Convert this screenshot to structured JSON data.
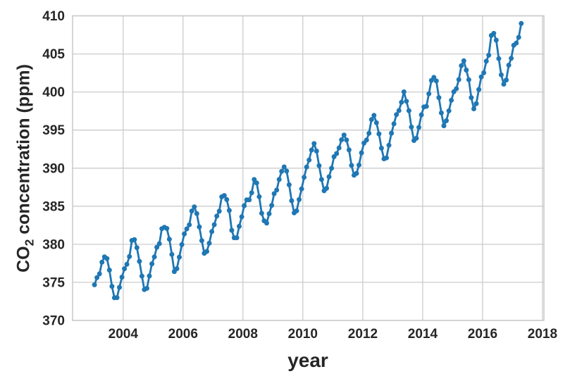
{
  "chart_data": {
    "type": "line",
    "title": "",
    "xlabel": "year",
    "ylabel": "CO2 concentration (ppm)",
    "ylabel_parts": {
      "base": "CO",
      "sub": "2",
      "rest": " concentration (ppm)"
    },
    "xlim": [
      2002.31,
      2018.05
    ],
    "ylim": [
      370,
      410
    ],
    "x_ticks": [
      2004,
      2006,
      2008,
      2010,
      2012,
      2014,
      2016,
      2018
    ],
    "y_ticks": [
      370,
      375,
      380,
      385,
      390,
      395,
      400,
      405,
      410
    ],
    "grid": true,
    "legend": "none",
    "series": [
      {
        "name": "CO2 concentration",
        "color": "#1f77b4",
        "marker": "circle",
        "cadence": "monthly",
        "monthly": [
          {
            "year": 2003,
            "values": [
              374.68,
              375.62,
              376.11,
              377.65,
              378.35,
              378.13,
              376.61,
              374.48,
              372.98,
              373.0,
              374.35,
              375.69
            ]
          },
          {
            "year": 2004,
            "values": [
              376.79,
              377.37,
              378.39,
              380.5,
              380.62,
              379.55,
              377.76,
              375.83,
              374.05,
              374.22,
              375.84,
              377.44
            ]
          },
          {
            "year": 2005,
            "values": [
              378.34,
              379.61,
              380.08,
              382.05,
              382.24,
              382.08,
              380.66,
              378.67,
              376.42,
              376.8,
              378.31,
              379.96
            ]
          },
          {
            "year": 2006,
            "values": [
              381.37,
              382.02,
              382.56,
              384.37,
              384.92,
              384.03,
              382.28,
              380.48,
              378.81,
              379.06,
              380.14,
              381.66
            ]
          },
          {
            "year": 2007,
            "values": [
              382.58,
              383.71,
              384.34,
              386.23,
              386.41,
              385.87,
              384.45,
              381.84,
              380.86,
              380.86,
              382.36,
              383.61
            ]
          },
          {
            "year": 2008,
            "values": [
              385.07,
              385.84,
              385.83,
              386.77,
              388.51,
              388.05,
              386.25,
              384.08,
              383.09,
              382.78,
              384.01,
              385.11
            ]
          },
          {
            "year": 2009,
            "values": [
              386.65,
              387.12,
              388.52,
              389.57,
              390.16,
              389.62,
              387.81,
              385.72,
              384.12,
              384.39,
              385.87,
              387.28
            ]
          },
          {
            "year": 2010,
            "values": [
              388.79,
              390.14,
              391.07,
              392.38,
              393.22,
              392.24,
              390.33,
              388.52,
              387.03,
              387.35,
              388.87,
              389.99
            ]
          },
          {
            "year": 2011,
            "values": [
              391.5,
              391.92,
              392.66,
              393.72,
              394.35,
              393.7,
              392.39,
              390.36,
              389.07,
              389.31,
              390.4,
              392.01
            ]
          },
          {
            "year": 2012,
            "values": [
              393.3,
              393.69,
              394.57,
              396.38,
              396.93,
              395.96,
              394.5,
              392.62,
              391.23,
              391.35,
              393.01,
              394.59
            ]
          },
          {
            "year": 2013,
            "values": [
              395.82,
              397.03,
              397.56,
              398.65,
              400.02,
              398.79,
              397.54,
              395.4,
              393.63,
              393.93,
              395.35,
              397.01
            ]
          },
          {
            "year": 2014,
            "values": [
              398.03,
              398.12,
              399.76,
              401.52,
              401.92,
              401.45,
              399.26,
              397.26,
              395.56,
              396.23,
              397.52,
              398.91
            ]
          },
          {
            "year": 2015,
            "values": [
              400.03,
              400.43,
              401.63,
              403.45,
              404.1,
              402.88,
              401.61,
              399.26,
              397.79,
              398.48,
              400.33,
              401.99
            ]
          },
          {
            "year": 2016,
            "values": [
              402.52,
              404.04,
              404.83,
              407.42,
              407.7,
              406.81,
              404.39,
              402.25,
              401.03,
              401.57,
              403.53,
              404.42
            ]
          },
          {
            "year": 2017,
            "values": [
              406.13,
              406.42,
              407.18,
              409.0
            ]
          }
        ]
      }
    ]
  },
  "colors": {
    "line": "#1f77b4",
    "grid": "#cccccc",
    "spine": "#c9c9c9",
    "text": "#262626",
    "background": "#ffffff"
  }
}
